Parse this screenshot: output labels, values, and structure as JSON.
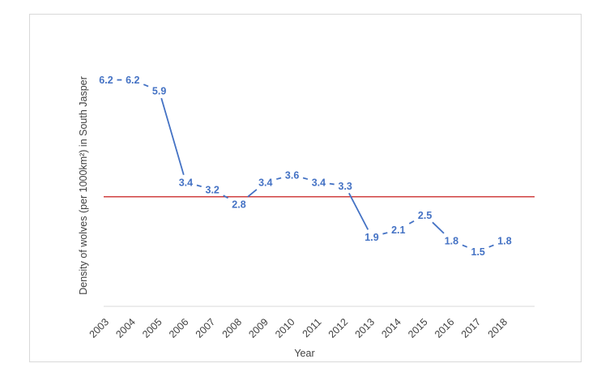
{
  "chart_data": {
    "type": "line",
    "title": "",
    "xlabel": "Year",
    "ylabel": "Density of wolves (per 1000km²) in South Jasper",
    "categories": [
      "2003",
      "2004",
      "2005",
      "2006",
      "2007",
      "2008",
      "2009",
      "2010",
      "2011",
      "2012",
      "2013",
      "2014",
      "2015",
      "2016",
      "2017",
      "2018"
    ],
    "series": [
      {
        "values": [
          6.2,
          6.2,
          5.9,
          3.4,
          3.2,
          2.8,
          3.4,
          3.6,
          3.4,
          3.3,
          1.9,
          2.1,
          2.5,
          1.8,
          1.5,
          1.8
        ],
        "color": "#4472c4"
      }
    ],
    "reference_line": {
      "value": 3.0,
      "color": "#c00000"
    },
    "ylim": [
      0,
      7.5
    ],
    "grid": false,
    "legend": "none",
    "y_tick_labels_shown": false
  }
}
